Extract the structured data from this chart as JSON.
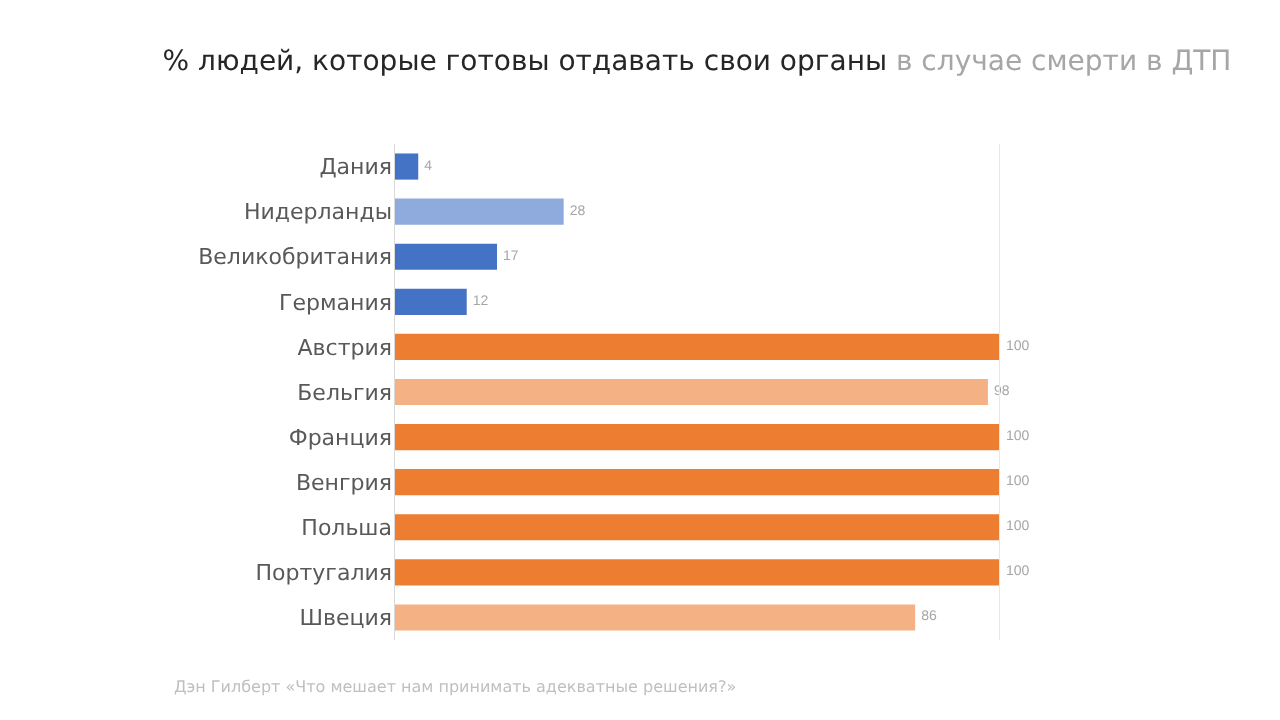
{
  "chart_data": {
    "type": "bar",
    "orientation": "horizontal",
    "title": "% людей, которые готовы отдавать свои органы",
    "subtitle": "в случае смерти в ДТП",
    "categories": [
      "Дания",
      "Нидерланды",
      "Великобритания",
      "Германия",
      "Австрия",
      "Бельгия",
      "Франция",
      "Венгрия",
      "Польша",
      "Португалия",
      "Швеция"
    ],
    "values": [
      4,
      28,
      17,
      12,
      100,
      98,
      100,
      100,
      100,
      100,
      86
    ],
    "colors": [
      "#4472c4",
      "#8faadc",
      "#4472c4",
      "#4472c4",
      "#ed7d31",
      "#f4b183",
      "#ed7d31",
      "#ed7d31",
      "#ed7d31",
      "#ed7d31",
      "#f4b183"
    ],
    "xlim": [
      0,
      100
    ],
    "data_labels": true,
    "tick_labels": "y",
    "grid": false,
    "legend": false,
    "annotations": [
      "Дэн Гилберт «Что мешает нам принимать адекватные решения?»"
    ]
  }
}
